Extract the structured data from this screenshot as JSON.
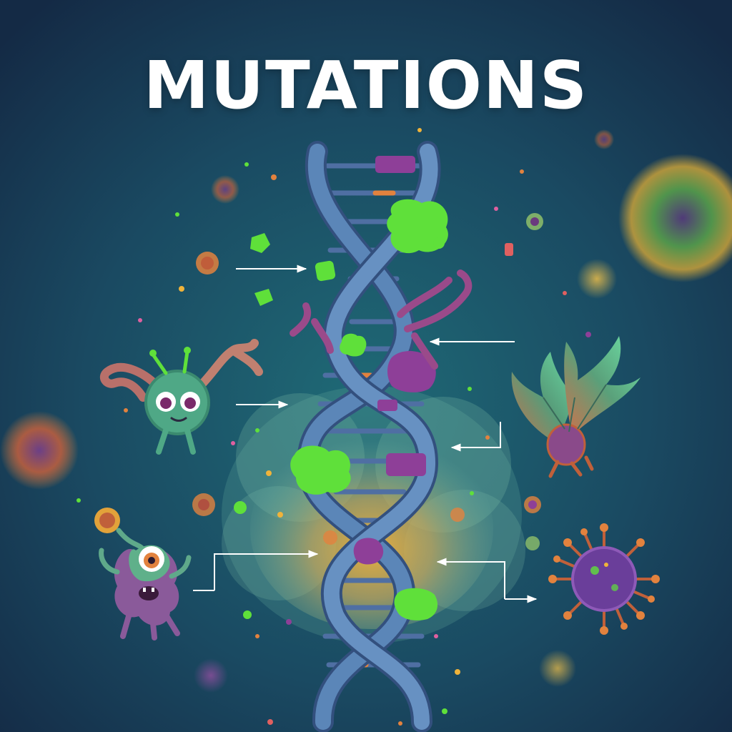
{
  "title": "MUTATIONS",
  "colors": {
    "background_center": "#1f6a76",
    "background_edge": "#142a45",
    "helix": "#5b86b8",
    "mutation_green": "#5fe03a",
    "mutation_purple": "#8e3f98",
    "mutation_orange": "#e2823e",
    "cloud_teal": "#6fb7a6",
    "cloud_yellow": "#f0b33a",
    "arrow": "#ffffff"
  },
  "illustrations": {
    "center": "dna-double-helix",
    "left_top": "green-microbe-creature",
    "left_bottom": "one-eyed-monster",
    "right_top": "leaf-winged-creature",
    "right_bottom": "virus-particle"
  }
}
